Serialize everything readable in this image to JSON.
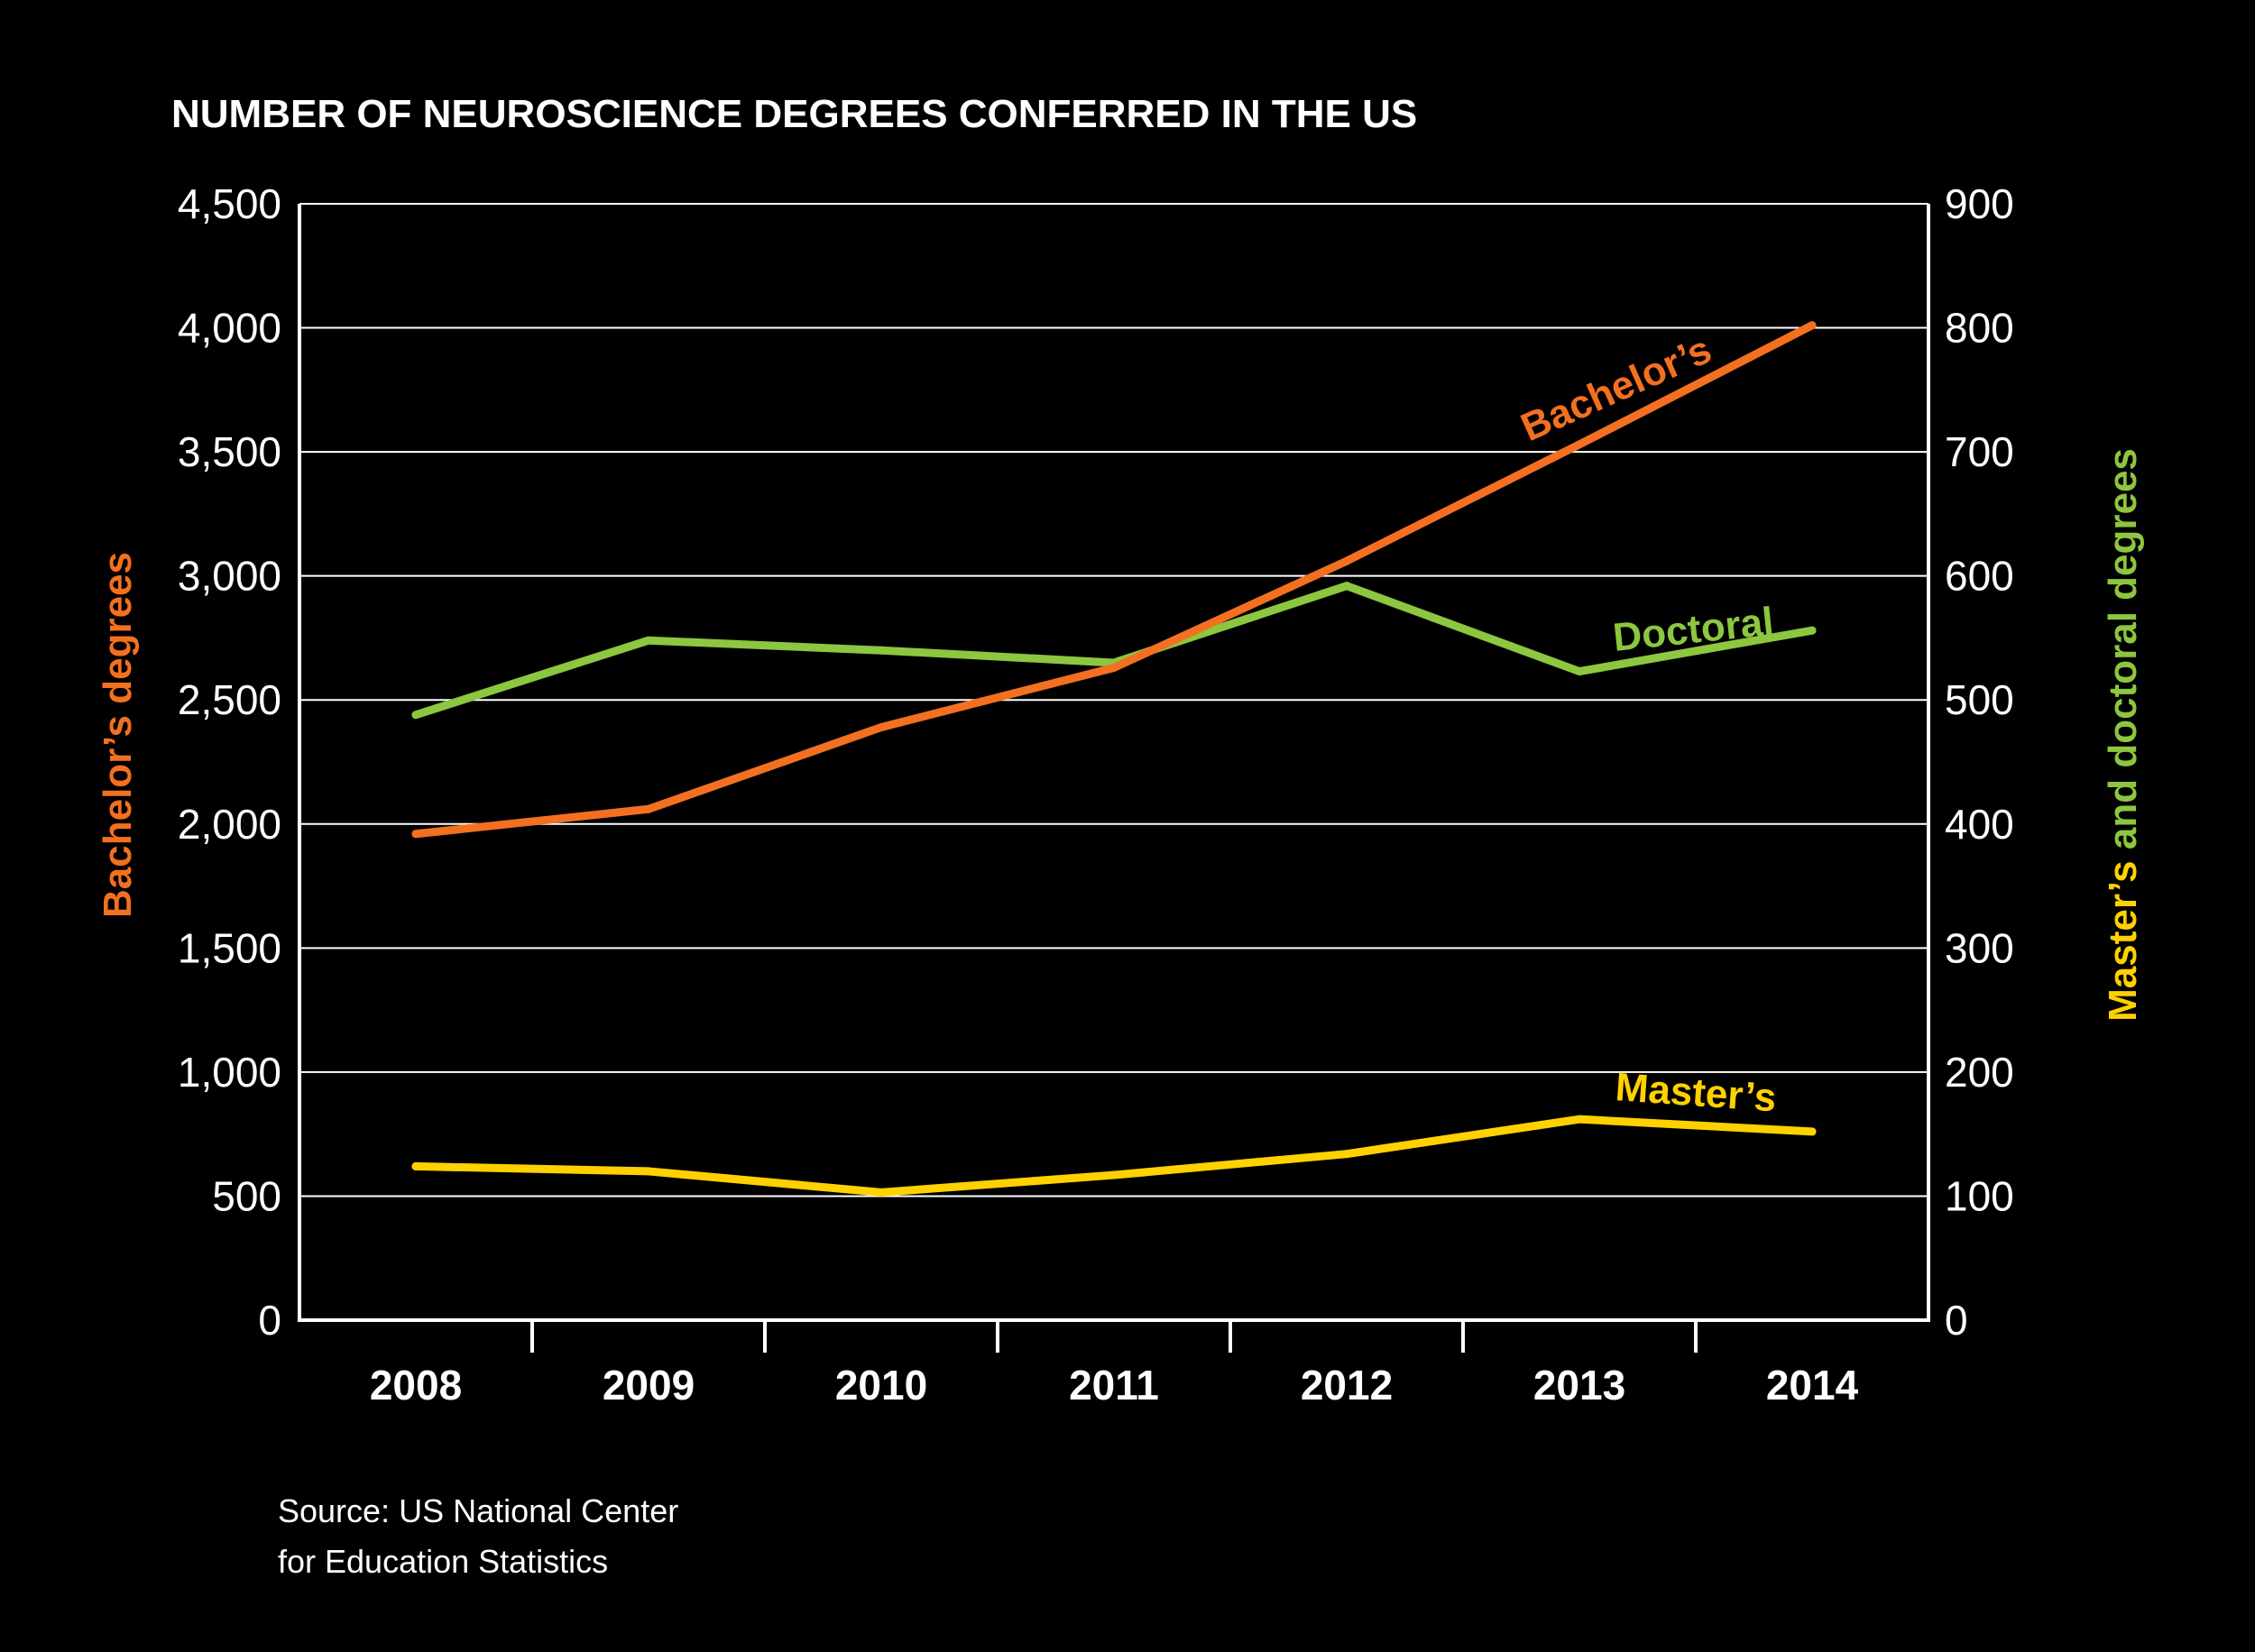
{
  "chart_data": {
    "type": "line",
    "title": "NUMBER OF NEUROSCIENCE DEGREES CONFERRED IN THE US",
    "categories": [
      "2008",
      "2009",
      "2010",
      "2011",
      "2012",
      "2013",
      "2014"
    ],
    "y_left": {
      "label": "Bachelor’s degrees",
      "ylim": [
        0,
        4500
      ],
      "ticks": [
        0,
        500,
        1000,
        1500,
        2000,
        2500,
        3000,
        3500,
        4000,
        4500
      ],
      "tick_labels": [
        "0",
        "500",
        "1,000",
        "1,500",
        "2,000",
        "2,500",
        "3,000",
        "3,500",
        "4,000",
        "4,500"
      ]
    },
    "y_right": {
      "label_part1": "Master’s",
      "label_part2": " and ",
      "label_part3": "doctoral degrees",
      "ylim": [
        0,
        900
      ],
      "ticks": [
        0,
        100,
        200,
        300,
        400,
        500,
        600,
        700,
        800,
        900
      ],
      "tick_labels": [
        "0",
        "100",
        "200",
        "300",
        "400",
        "500",
        "600",
        "700",
        "800",
        "900"
      ]
    },
    "grid": true,
    "series": [
      {
        "name": "Bachelor’s",
        "axis": "left",
        "color": "#f37021",
        "values": [
          1960,
          2060,
          2390,
          2630,
          3060,
          3530,
          4010
        ]
      },
      {
        "name": "Doctoral",
        "axis": "right",
        "color": "#8dc63f",
        "values": [
          488,
          548,
          540,
          530,
          592,
          523,
          556
        ]
      },
      {
        "name": "Master’s",
        "axis": "right",
        "color": "#ffd100",
        "values": [
          124,
          120,
          103,
          117,
          134,
          162,
          152
        ]
      }
    ]
  },
  "colors": {
    "background": "#000000",
    "bachelors": "#f37021",
    "doctoral": "#8dc63f",
    "masters": "#ffd100",
    "axis": "#ffffff"
  },
  "source": {
    "line1": "Source: US National Center",
    "line2": "for Education Statistics"
  }
}
